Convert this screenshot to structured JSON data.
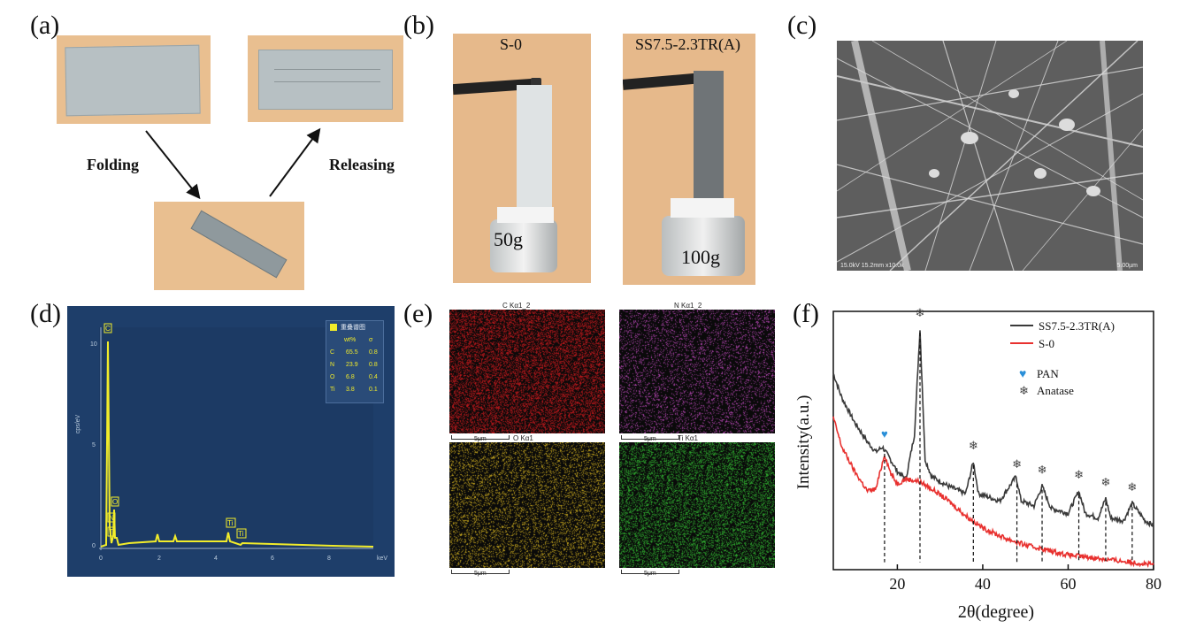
{
  "panels": {
    "a": {
      "label": "(a)",
      "folding": "Folding",
      "releasing": "Releasing"
    },
    "b": {
      "label": "(b)",
      "left_title": "S-0",
      "left_weight": "50g",
      "right_title": "SS7.5-2.3TR(A)",
      "right_weight": "100g"
    },
    "c": {
      "label": "(c)",
      "info": "15.0kV 15.2mm x10.0k",
      "scale": "5.00µm"
    },
    "d": {
      "label": "(d)",
      "y_axis": "cps/eV",
      "x_axis": "keV",
      "legend_title": "重叠谱图",
      "legend_headers": [
        "wt%",
        "σ"
      ],
      "legend_rows": [
        {
          "el": "C",
          "wt": "65.5",
          "s": "0.8"
        },
        {
          "el": "N",
          "wt": "23.9",
          "s": "0.8"
        },
        {
          "el": "O",
          "wt": "6.8",
          "s": "0.4"
        },
        {
          "el": "Ti",
          "wt": "3.8",
          "s": "0.1"
        }
      ],
      "peak_labels": [
        "C",
        "O",
        "N",
        "Ti",
        "Ti",
        "Ti"
      ],
      "y_ticks": [
        "10",
        "5",
        "0"
      ],
      "x_ticks": [
        "0",
        "2",
        "4",
        "6",
        "8"
      ]
    },
    "e": {
      "label": "(e)",
      "maps": [
        {
          "title": "C Kα1_2",
          "scale": "5μm",
          "color": "#c0181c"
        },
        {
          "title": "N Kα1_2",
          "scale": "5μm",
          "color": "#b646b4"
        },
        {
          "title": "O Kα1",
          "scale": "5μm",
          "color": "#c8a81e"
        },
        {
          "title": "Ti Kα1",
          "scale": "5μm",
          "color": "#2fae2f"
        }
      ]
    },
    "f": {
      "label": "(f)",
      "legend": [
        "SS7.5-2.3TR(A)",
        "S-0"
      ],
      "marker_legend": [
        "PAN",
        "Anatase"
      ],
      "ylabel": "Intensity(a.u.)",
      "xlabel": "2θ(degree)"
    }
  },
  "chart_data": {
    "type": "line",
    "xlabel": "2θ(degree)",
    "ylabel": "Intensity(a.u.)",
    "xlim": [
      5,
      80
    ],
    "x_ticks": [
      20,
      40,
      60,
      80
    ],
    "series": [
      {
        "name": "SS7.5-2.3TR(A)",
        "color": "#3a3a3a",
        "x": [
          5,
          7,
          10,
          13,
          15,
          16.5,
          18,
          20,
          22,
          24,
          25.3,
          26.5,
          28,
          32,
          36,
          37.8,
          39,
          44,
          47.8,
          49,
          52,
          53.9,
          56,
          60,
          62.5,
          64,
          67,
          68.8,
          70,
          73,
          75,
          78,
          80
        ],
        "y": [
          0.8,
          0.7,
          0.6,
          0.52,
          0.48,
          0.5,
          0.46,
          0.4,
          0.37,
          0.55,
          0.98,
          0.45,
          0.38,
          0.34,
          0.31,
          0.44,
          0.31,
          0.28,
          0.38,
          0.28,
          0.26,
          0.34,
          0.25,
          0.23,
          0.32,
          0.23,
          0.21,
          0.29,
          0.21,
          0.2,
          0.27,
          0.2,
          0.18
        ]
      },
      {
        "name": "S-0",
        "color": "#e8312f",
        "x": [
          5,
          7,
          10,
          13,
          15,
          17,
          18.5,
          20,
          22,
          25,
          28,
          32,
          36,
          40,
          45,
          50,
          55,
          60,
          65,
          70,
          75,
          80
        ],
        "y": [
          0.62,
          0.5,
          0.4,
          0.32,
          0.33,
          0.47,
          0.39,
          0.35,
          0.37,
          0.36,
          0.33,
          0.28,
          0.22,
          0.17,
          0.13,
          0.1,
          0.08,
          0.06,
          0.05,
          0.04,
          0.03,
          0.02
        ]
      }
    ],
    "markers": [
      {
        "type": "PAN",
        "x": 17
      },
      {
        "type": "Anatase",
        "x": 25.3
      },
      {
        "type": "Anatase",
        "x": 37.8
      },
      {
        "type": "Anatase",
        "x": 48
      },
      {
        "type": "Anatase",
        "x": 53.9
      },
      {
        "type": "Anatase",
        "x": 62.5
      },
      {
        "type": "Anatase",
        "x": 68.8
      },
      {
        "type": "Anatase",
        "x": 75
      }
    ]
  }
}
